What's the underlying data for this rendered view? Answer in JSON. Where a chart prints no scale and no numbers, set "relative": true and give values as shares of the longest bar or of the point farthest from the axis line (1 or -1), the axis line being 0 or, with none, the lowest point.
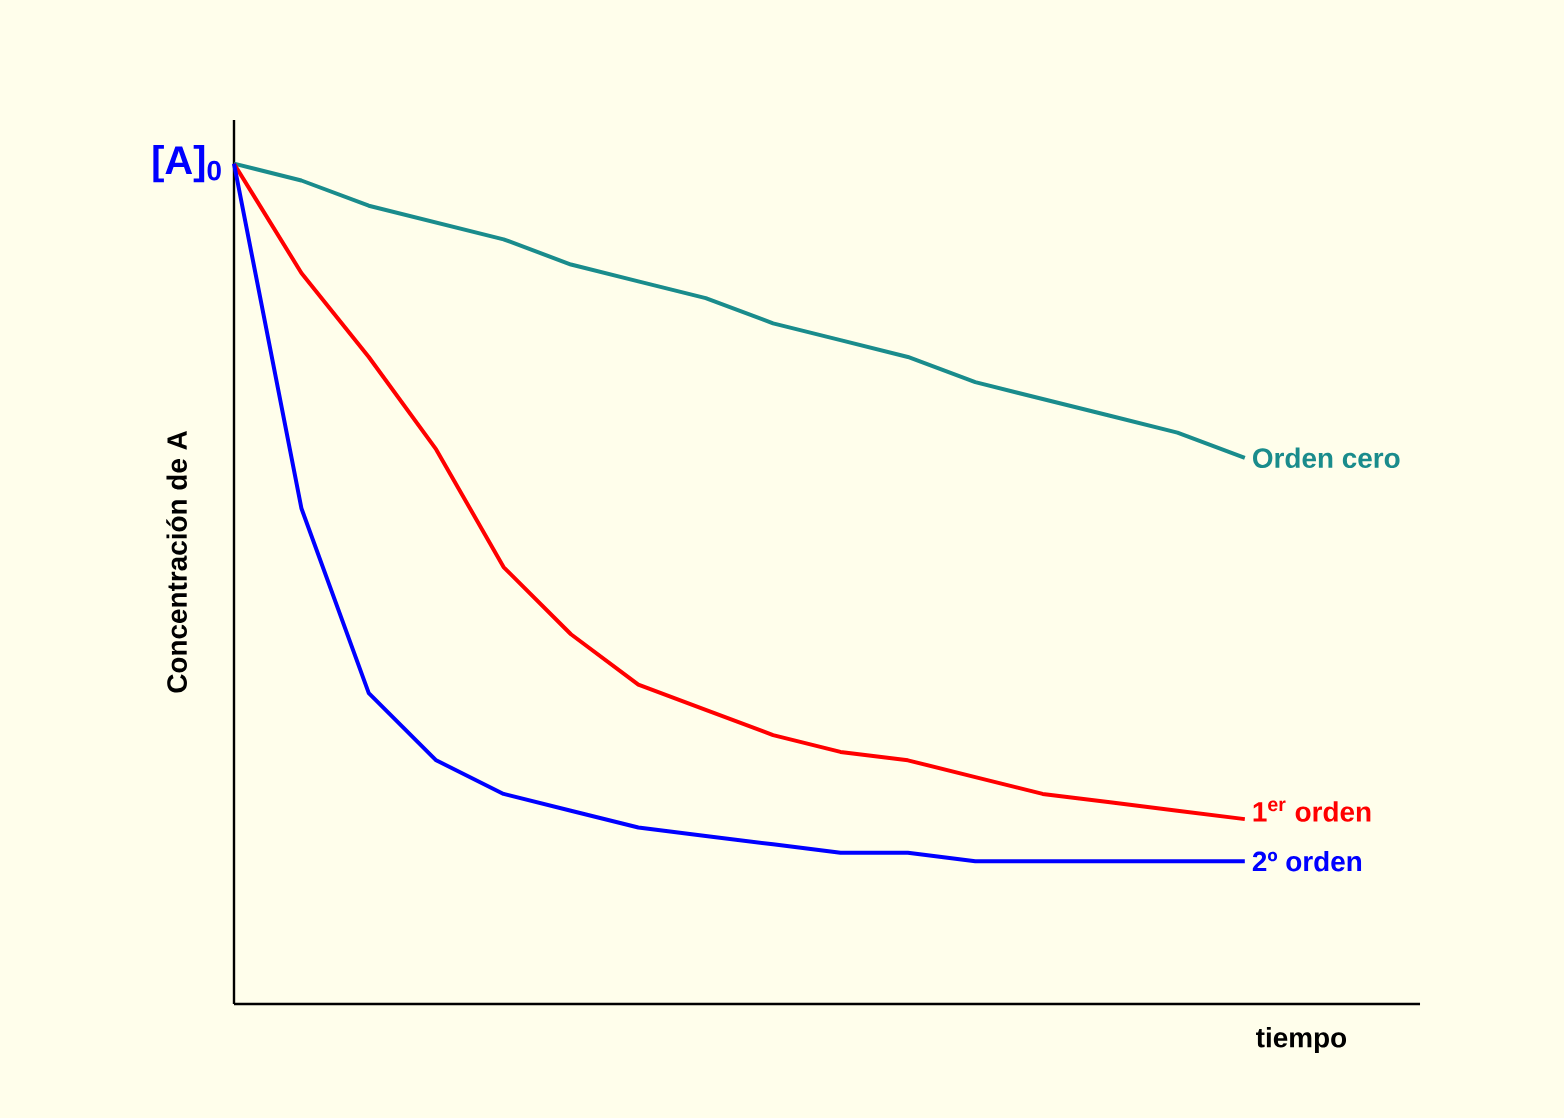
{
  "chart_data": {
    "type": "line",
    "relative": true,
    "xlabel": "tiempo",
    "ylabel": "Concentración de A",
    "annotations": [
      "[A]$_{0}$"
    ],
    "categories": [
      null,
      null,
      null,
      null,
      null,
      null,
      null,
      null,
      null,
      null,
      null,
      null,
      null,
      null,
      null,
      null
    ],
    "series": [
      {
        "name": "Orden cero",
        "color": "#1a8c8c",
        "values": [
          1,
          0.98,
          0.95,
          0.93,
          0.91,
          0.88,
          0.86,
          0.84,
          0.81,
          0.79,
          0.77,
          0.74,
          0.72,
          0.7,
          0.68,
          0.65
        ]
      },
      {
        "name": "1$^{er}$ orden",
        "color": "#ff0000",
        "values": [
          1,
          0.87,
          0.77,
          0.66,
          0.52,
          0.44,
          0.38,
          0.35,
          0.32,
          0.3,
          0.29,
          0.27,
          0.25,
          0.24,
          0.23,
          0.22
        ]
      },
      {
        "name": "2º orden",
        "color": "#0000ff",
        "values": [
          1,
          0.59,
          0.37,
          0.29,
          0.25,
          0.23,
          0.21,
          0.2,
          0.19,
          0.18,
          0.18,
          0.17,
          0.17,
          0.17,
          0.17,
          0.17
        ]
      }
    ]
  }
}
